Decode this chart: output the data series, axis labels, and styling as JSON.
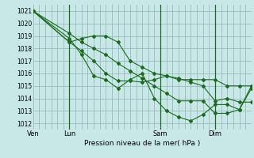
{
  "title": "Pression niveau de la mer( hPa )",
  "bg_color": "#c8e8e8",
  "grid_color": "#99bbbb",
  "line_color": "#1a6b1a",
  "ylim": [
    1011.5,
    1021.5
  ],
  "yticks": [
    1012,
    1013,
    1014,
    1015,
    1016,
    1017,
    1018,
    1019,
    1020,
    1021
  ],
  "x_day_labels": [
    {
      "label": "Ven",
      "x": 0
    },
    {
      "label": "Lun",
      "x": 48
    },
    {
      "label": "Sam",
      "x": 168
    },
    {
      "label": "Dim",
      "x": 240
    }
  ],
  "x_day_vlines": [
    48,
    168,
    240
  ],
  "x_minor_ticks": [
    0,
    8,
    16,
    24,
    32,
    40,
    48,
    56,
    64,
    72,
    80,
    88,
    96,
    104,
    112,
    120,
    128,
    136,
    144,
    152,
    160,
    168,
    176,
    184,
    192,
    200,
    208,
    216,
    224,
    232,
    240,
    248,
    256,
    264,
    272,
    280,
    288
  ],
  "xlim": [
    0,
    288
  ],
  "series": [
    {
      "x": [
        0,
        48,
        64,
        80,
        96,
        112,
        128,
        144,
        160,
        176,
        192,
        208,
        224,
        240,
        256,
        272,
        288
      ],
      "y": [
        1021,
        1019.2,
        1018.5,
        1018.0,
        1017.5,
        1016.8,
        1016.2,
        1015.6,
        1015.0,
        1014.4,
        1013.8,
        1013.8,
        1013.8,
        1012.8,
        1012.8,
        1013.1,
        1014.8
      ]
    },
    {
      "x": [
        0,
        48,
        64,
        80,
        96,
        112,
        128,
        144,
        160,
        176,
        192,
        208,
        224,
        240,
        256,
        272,
        288
      ],
      "y": [
        1021,
        1018.5,
        1018.8,
        1019.0,
        1019.0,
        1018.5,
        1017.0,
        1016.5,
        1016.0,
        1015.8,
        1015.5,
        1015.5,
        1015.5,
        1015.5,
        1015.0,
        1015.0,
        1015.0
      ]
    },
    {
      "x": [
        0,
        48,
        64,
        80,
        96,
        112,
        128,
        144,
        160,
        176,
        192,
        208,
        224,
        240,
        256,
        272,
        288
      ],
      "y": [
        1021,
        1018.5,
        1017.8,
        1017.0,
        1016.0,
        1015.4,
        1015.4,
        1015.3,
        1015.5,
        1015.8,
        1015.6,
        1015.3,
        1015.0,
        1013.8,
        1014.0,
        1013.7,
        1013.7
      ]
    },
    {
      "x": [
        0,
        48,
        64,
        80,
        96,
        112,
        128,
        144,
        160,
        176,
        192,
        208,
        224,
        240,
        256,
        272,
        288
      ],
      "y": [
        1021,
        1018.8,
        1017.5,
        1015.8,
        1015.5,
        1014.8,
        1015.5,
        1016.0,
        1014.0,
        1013.0,
        1012.5,
        1012.2,
        1012.7,
        1013.5,
        1013.5,
        1013.1,
        1015.0
      ]
    }
  ]
}
